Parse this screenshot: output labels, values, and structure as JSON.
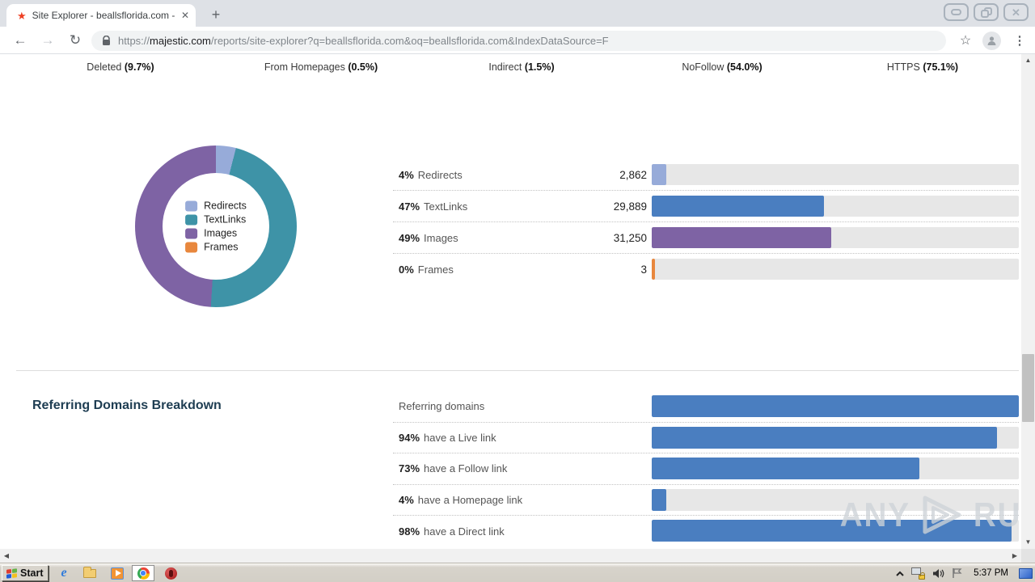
{
  "browser": {
    "tab_title": "Site Explorer - beallsflorida.com - Su",
    "url_scheme": "https://",
    "url_host": "majestic.com",
    "url_path": "/reports/site-explorer?q=beallsflorida.com&oq=beallsflorida.com&IndexDataSource=F"
  },
  "icons": {
    "favicon_star": "★",
    "tab_close": "✕",
    "new_tab": "+",
    "window_close": "✕",
    "back": "←",
    "forward": "→",
    "reload": "↻",
    "bookmark_star": "☆",
    "menu_dots": "⋮",
    "scroll_up": "▲",
    "scroll_down": "▼",
    "scroll_left": "◀",
    "scroll_right": "▶"
  },
  "page": {
    "top_stats": [
      {
        "label": "Deleted",
        "value": "9.7%"
      },
      {
        "label": "From Homepages",
        "value": "0.5%"
      },
      {
        "label": "Indirect",
        "value": "1.5%"
      },
      {
        "label": "NoFollow",
        "value": "54.0%"
      },
      {
        "label": "HTTPS",
        "value": "75.1%"
      }
    ],
    "section_title": "Referring Domains Breakdown"
  },
  "chart_data": [
    {
      "type": "pie",
      "variant": "donut",
      "legend_position": "center",
      "categories": [
        "Redirects",
        "TextLinks",
        "Images",
        "Frames"
      ],
      "values_pct": [
        4,
        47,
        49,
        0
      ],
      "counts": [
        2862,
        29889,
        31250,
        3
      ],
      "colors": [
        "#97abd9",
        "#3e93a7",
        "#7e63a4",
        "#e8873d"
      ]
    },
    {
      "type": "bar",
      "orientation": "horizontal",
      "xlim": [
        0,
        100
      ],
      "rows": [
        {
          "pct": "4%",
          "label": "Redirects",
          "value": "2,862",
          "fill_pct": 4,
          "color": "#97abd9"
        },
        {
          "pct": "47%",
          "label": "TextLinks",
          "value": "29,889",
          "fill_pct": 47,
          "color": "#4a7ec0"
        },
        {
          "pct": "49%",
          "label": "Images",
          "value": "31,250",
          "fill_pct": 49,
          "color": "#7e63a4"
        },
        {
          "pct": "0%",
          "label": "Frames",
          "value": "3",
          "fill_pct": 0.8,
          "color": "#e8873d"
        }
      ]
    },
    {
      "type": "bar",
      "orientation": "horizontal",
      "title": "Referring Domains Breakdown",
      "xlim": [
        0,
        100
      ],
      "bar_color": "#4a7ec0",
      "rows": [
        {
          "pct": "",
          "label": "Referring domains",
          "fill_pct": 100
        },
        {
          "pct": "94%",
          "label": "have a Live link",
          "fill_pct": 94
        },
        {
          "pct": "73%",
          "label": "have a Follow link",
          "fill_pct": 73
        },
        {
          "pct": "4%",
          "label": "have a Homepage link",
          "fill_pct": 4
        },
        {
          "pct": "98%",
          "label": "have a Direct link",
          "fill_pct": 98
        }
      ]
    }
  ],
  "watermark": {
    "left": "ANY",
    "right": "RUN"
  },
  "taskbar": {
    "start": "Start",
    "time": "5:37 PM"
  },
  "colors": {
    "track": "#e7e7e7",
    "steel_blue": "#4a7ec0"
  }
}
